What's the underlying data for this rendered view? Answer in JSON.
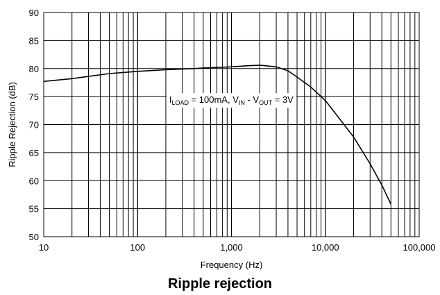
{
  "chart_data": {
    "type": "line",
    "title": "",
    "caption": "Ripple rejection",
    "xlabel": "Frequency (Hz)",
    "ylabel": "Ripple Rejection (dB)",
    "xscale": "log",
    "xlim": [
      10,
      100000
    ],
    "ylim": [
      50,
      90
    ],
    "grid": true,
    "x_tick_labels": [
      "10",
      "100",
      "1,000",
      "10,000",
      "100,000"
    ],
    "y_tick_labels": [
      "50",
      "55",
      "60",
      "65",
      "70",
      "75",
      "80",
      "85",
      "90"
    ],
    "annotation": {
      "parts": [
        {
          "text": "I",
          "sub": false
        },
        {
          "text": "LOAD",
          "sub": true
        },
        {
          "text": " = 100mA, V",
          "sub": false
        },
        {
          "text": "IN",
          "sub": true
        },
        {
          "text": " - V",
          "sub": false
        },
        {
          "text": "OUT",
          "sub": true
        },
        {
          "text": " = 3V",
          "sub": false
        }
      ],
      "x": 1000,
      "y": 74.5
    },
    "series": [
      {
        "x": [
          10,
          20,
          30,
          50,
          100,
          200,
          400,
          500,
          1000,
          1500,
          2000,
          3000,
          4000,
          5000,
          7000,
          10000,
          15000,
          20000,
          30000,
          40000,
          50000
        ],
        "y": [
          77.7,
          78.2,
          78.6,
          79.1,
          79.5,
          79.8,
          80.0,
          80.1,
          80.3,
          80.5,
          80.6,
          80.3,
          79.6,
          78.5,
          76.7,
          74.3,
          70.5,
          67.8,
          63.0,
          59.2,
          55.8
        ]
      }
    ]
  }
}
